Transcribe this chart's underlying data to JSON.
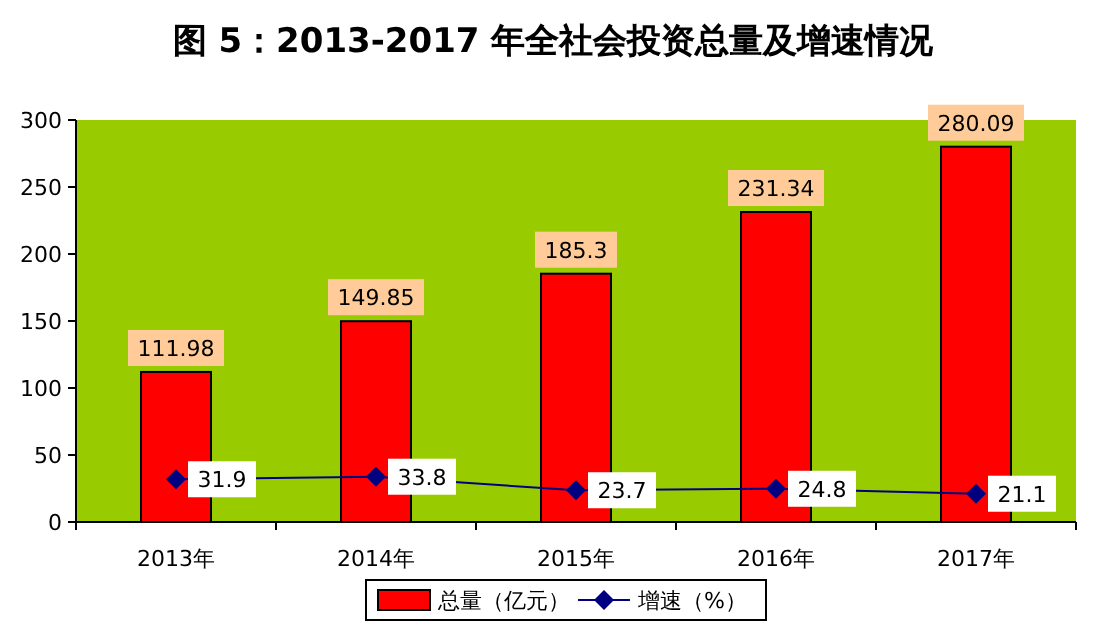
{
  "chart_data": {
    "type": "bar",
    "title": "图 5：2013-2017 年全社会投资总量及增速情况",
    "categories": [
      "2013年",
      "2014年",
      "2015年",
      "2016年",
      "2017年"
    ],
    "series": [
      {
        "name": "总量（亿元）",
        "color": "#ff0000",
        "values": [
          111.98,
          149.85,
          185.3,
          231.34,
          280.09
        ]
      },
      {
        "name": "增速（%）",
        "type": "line",
        "color": "#000080",
        "marker": "diamond",
        "values": [
          31.9,
          33.8,
          23.7,
          24.8,
          21.1
        ]
      }
    ],
    "ylim": [
      0,
      300
    ],
    "yticks": [
      0,
      50,
      100,
      150,
      200,
      250,
      300
    ],
    "data_labels": true,
    "legend": "bottom",
    "grid": false
  }
}
